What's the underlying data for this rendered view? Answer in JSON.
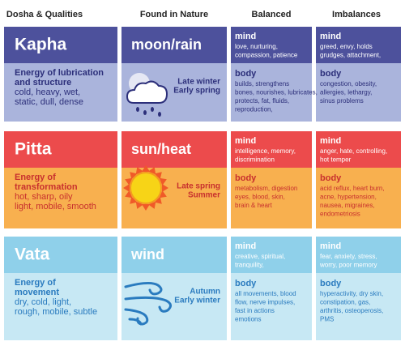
{
  "header": {
    "columns": [
      "Dosha & Qualities",
      "Found in Nature",
      "Balanced",
      "Imbalances"
    ]
  },
  "doshas": [
    {
      "name": "Kapha",
      "energy": [
        "Energy of lubrication",
        "and structure"
      ],
      "qualities": [
        "cold, heavy, wet,",
        "static, dull, dense"
      ],
      "nature": "moon/rain",
      "seasons": [
        "Late winter",
        "Early spring"
      ],
      "balanced": {
        "mind_label": "mind",
        "mind": [
          "love, nurturing,",
          "compassion, patience"
        ],
        "body_label": "body",
        "body": [
          "builds, strengthens",
          "bones, nourishes, lubricates,",
          "protects, fat, fluids,",
          "reproduction,"
        ]
      },
      "imbalances": {
        "mind_label": "mind",
        "mind": [
          "greed, envy, holds",
          "grudges, attachment,"
        ],
        "body_label": "body",
        "body": [
          "congestion, obesity,",
          "allergies, lethargy,",
          "sinus problems"
        ]
      }
    },
    {
      "name": "Pitta",
      "energy": [
        "Energy of",
        "transformation"
      ],
      "qualities": [
        "hot, sharp, oily",
        "light, mobile, smooth"
      ],
      "nature": "sun/heat",
      "seasons": [
        "Late spring",
        "Summer"
      ],
      "balanced": {
        "mind_label": "mind",
        "mind": [
          "intelligence, memory,",
          "discrimination"
        ],
        "body_label": "body",
        "body": [
          "metabolism, digestion",
          "eyes, blood, skin,",
          "brain & heart"
        ]
      },
      "imbalances": {
        "mind_label": "mind",
        "mind": [
          "anger, hate, controlling,",
          "hot temper"
        ],
        "body_label": "body",
        "body": [
          "acid reflux, heart burn,",
          "acne, hypertension,",
          "nausea, migraines,",
          "endometriosis"
        ]
      }
    },
    {
      "name": "Vata",
      "energy": [
        "Energy of",
        "movement"
      ],
      "qualities": [
        "dry, cold, light,",
        "rough, mobile, subtle"
      ],
      "nature": "wind",
      "seasons": [
        "Autumn",
        "Early winter"
      ],
      "balanced": {
        "mind_label": "mind",
        "mind": [
          "creative, spiritual,",
          "tranquility,"
        ],
        "body_label": "body",
        "body": [
          "all movements, blood",
          "flow, nerve impulses,",
          "fast in actions",
          "emotions"
        ]
      },
      "imbalances": {
        "mind_label": "mind",
        "mind": [
          "fear, anxiety, stress,",
          "worry, poor memory"
        ],
        "body_label": "body",
        "body": [
          "hyperactivity, dry skin,",
          "constipation, gas,",
          "arthritis, osteoperosis,",
          "PMS"
        ]
      }
    }
  ]
}
